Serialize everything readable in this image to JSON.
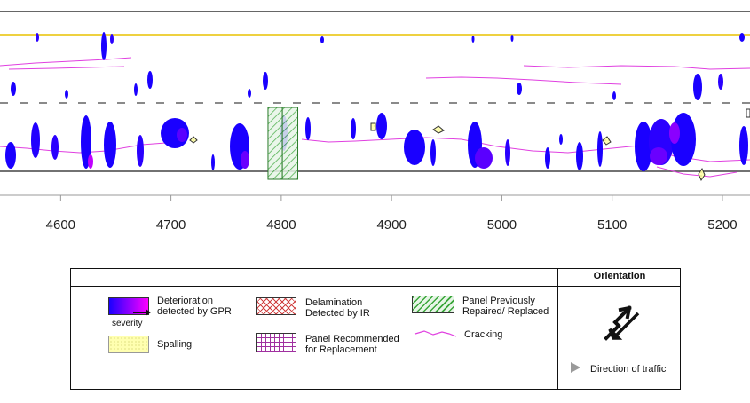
{
  "chart_data": {
    "type": "heatmap",
    "x_ticks": [
      "4600",
      "4700",
      "4800",
      "4900",
      "5000",
      "5100",
      "5200"
    ],
    "x_tick_values": [
      4600,
      4700,
      4800,
      4900,
      5000,
      5100,
      5200
    ],
    "x_range": [
      4545,
      5225
    ],
    "panels_previously_repaired": [
      [
        4788,
        4801
      ],
      [
        4801,
        4815
      ]
    ],
    "grid": false
  },
  "legend": {
    "items": {
      "gpr": "Deterioration\ndetected by GPR",
      "severity": "severity",
      "spalling": "Spalling",
      "delamination": "Delamination\nDetected by IR",
      "recommended": "Panel Recommended\nfor Replacement",
      "repaired": "Panel Previously\nRepaired/ Replaced",
      "cracking": "Cracking"
    },
    "orientation": {
      "title": "Orientation",
      "direction": "Direction of traffic"
    }
  },
  "colors": {
    "deterioration_low": "#1a00ff",
    "deterioration_high": "#ff00ff",
    "cracking": "#e040e0",
    "lane_yellow": "#e8c200",
    "repaired_hatch": "#3aa63a",
    "delamination_hatch": "#d04040",
    "recommended_hatch": "#a030a0",
    "spalling_fill": "#ffffb0"
  }
}
